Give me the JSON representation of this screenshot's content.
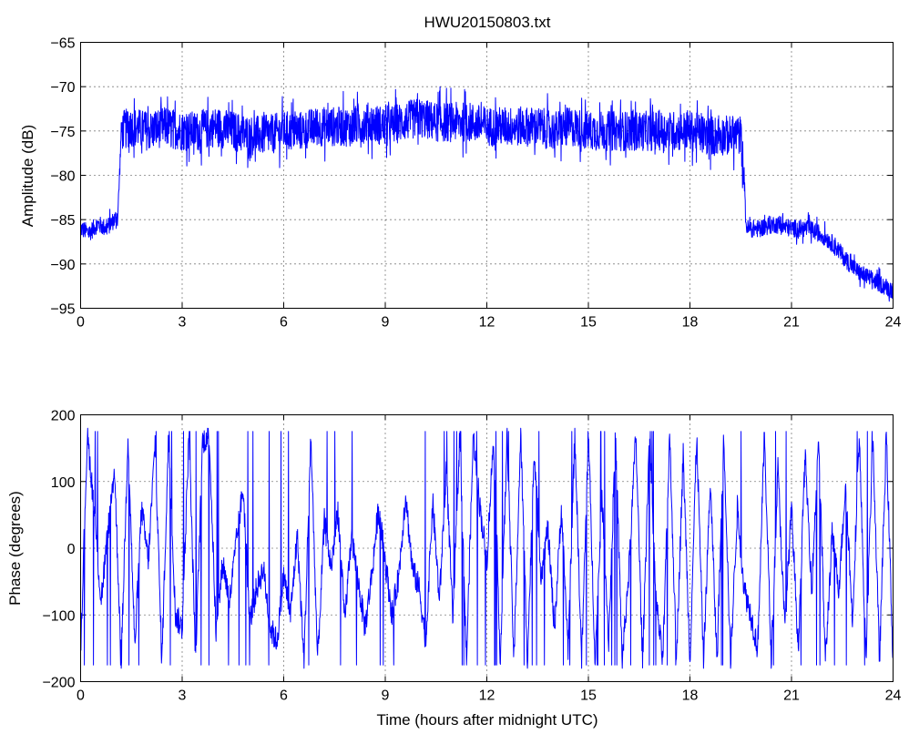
{
  "chart_data": [
    {
      "type": "line",
      "title": "HWU20150803.txt",
      "xlabel": "",
      "ylabel": "Amplitude (dB)",
      "xlim": [
        0,
        24
      ],
      "ylim": [
        -95,
        -65
      ],
      "xticks": [
        0,
        3,
        6,
        9,
        12,
        15,
        18,
        21,
        24
      ],
      "xtick_labels": [
        "0",
        "3",
        "6",
        "9",
        "12",
        "15",
        "18",
        "21",
        "24"
      ],
      "yticks": [
        -95,
        -90,
        -85,
        -80,
        -75,
        -70,
        -65
      ],
      "ytick_labels": [
        "−95",
        "−90",
        "−85",
        "−80",
        "−75",
        "−70",
        "−65"
      ],
      "grid": true,
      "line_color": "#0000ff",
      "series": [
        {
          "x": [
            0,
            0.25,
            0.5,
            0.75,
            1.0,
            1.1,
            1.15,
            1.2,
            1.5,
            2,
            2.5,
            3,
            3.5,
            4,
            4.5,
            5,
            5.5,
            6,
            6.5,
            7,
            7.5,
            8,
            8.5,
            9,
            9.5,
            10,
            10.5,
            11,
            11.5,
            12,
            12.5,
            13,
            13.5,
            14,
            14.5,
            15,
            15.5,
            16,
            16.5,
            17,
            17.5,
            18,
            18.5,
            19,
            19.5,
            19.6,
            19.65,
            19.7,
            20,
            20.5,
            21,
            21.5,
            21.8,
            22,
            22.3,
            22.6,
            23,
            23.5,
            24
          ],
          "y": [
            -86,
            -86.5,
            -85.5,
            -86,
            -85,
            -84.5,
            -80,
            -75,
            -74.5,
            -75,
            -74.5,
            -75,
            -75,
            -74.5,
            -75,
            -75.5,
            -75.5,
            -75,
            -75,
            -74.5,
            -74.5,
            -74.5,
            -74,
            -74.5,
            -74,
            -73.5,
            -74,
            -74,
            -74,
            -74.5,
            -74.5,
            -74.5,
            -74.5,
            -75,
            -74.5,
            -75,
            -75,
            -75,
            -75,
            -75,
            -75,
            -75,
            -75.5,
            -75.5,
            -75.5,
            -80,
            -85.5,
            -86,
            -86,
            -85.5,
            -86,
            -86,
            -86.5,
            -87,
            -88,
            -89.5,
            -91,
            -92,
            -93
          ]
        }
      ]
    },
    {
      "type": "line",
      "title": "",
      "xlabel": "Time (hours after midnight UTC)",
      "ylabel": "Phase (degrees)",
      "xlim": [
        0,
        24
      ],
      "ylim": [
        -200,
        200
      ],
      "xticks": [
        0,
        3,
        6,
        9,
        12,
        15,
        18,
        21,
        24
      ],
      "xtick_labels": [
        "0",
        "3",
        "6",
        "9",
        "12",
        "15",
        "18",
        "21",
        "24"
      ],
      "yticks": [
        -200,
        -100,
        0,
        100,
        200
      ],
      "ytick_labels": [
        "−200",
        "−100",
        "0",
        "100",
        "200"
      ],
      "grid": true,
      "line_color": "#0000ff",
      "series": [
        {
          "x": [
            0,
            0.2,
            0.4,
            0.6,
            0.8,
            1.0,
            1.2,
            1.4,
            1.6,
            1.8,
            2.0,
            2.2,
            2.4,
            2.6,
            2.8,
            3.0,
            3.2,
            3.4,
            3.6,
            3.8,
            4.0,
            4.2,
            4.4,
            4.6,
            4.8,
            5.0,
            5.2,
            5.4,
            5.6,
            5.8,
            6.0,
            6.2,
            6.4,
            6.6,
            6.8,
            7.0,
            7.2,
            7.4,
            7.6,
            7.8,
            8.0,
            8.2,
            8.4,
            8.6,
            8.8,
            9.0,
            9.2,
            9.4,
            9.6,
            9.8,
            10.0,
            10.2,
            10.4,
            10.6,
            10.8,
            11.0,
            11.2,
            11.4,
            11.6,
            11.8,
            12.0,
            12.2,
            12.4,
            12.6,
            12.8,
            13.0,
            13.2,
            13.4,
            13.6,
            13.8,
            14.0,
            14.2,
            14.4,
            14.6,
            14.8,
            15.0,
            15.2,
            15.4,
            15.6,
            15.8,
            16.0,
            16.2,
            16.4,
            16.6,
            16.8,
            17.0,
            17.2,
            17.4,
            17.6,
            17.8,
            18.0,
            18.2,
            18.4,
            18.6,
            18.8,
            19.0,
            19.2,
            19.4,
            19.6,
            19.8,
            20.0,
            20.2,
            20.4,
            20.6,
            20.8,
            21.0,
            21.2,
            21.4,
            21.6,
            21.8,
            22.0,
            22.2,
            22.4,
            22.6,
            22.8,
            23.0,
            23.2,
            23.4,
            23.6,
            23.8,
            24.0
          ],
          "y": [
            -150,
            170,
            60,
            -80,
            20,
            120,
            -170,
            170,
            -150,
            60,
            -20,
            160,
            -170,
            170,
            -100,
            -120,
            170,
            -170,
            160,
            170,
            -130,
            -20,
            -80,
            10,
            90,
            -110,
            -60,
            -30,
            -120,
            -140,
            -40,
            -100,
            20,
            -170,
            170,
            -170,
            40,
            -30,
            60,
            -110,
            20,
            -50,
            -120,
            -40,
            60,
            -20,
            -100,
            -40,
            80,
            -30,
            -60,
            -140,
            70,
            -80,
            120,
            -110,
            170,
            -170,
            170,
            60,
            -20,
            170,
            -170,
            170,
            -170,
            170,
            -170,
            150,
            -40,
            30,
            -120,
            60,
            -150,
            170,
            -170,
            170,
            -170,
            80,
            -140,
            170,
            -170,
            -30,
            170,
            -170,
            170,
            -80,
            -170,
            170,
            -170,
            140,
            -170,
            170,
            -170,
            100,
            -170,
            170,
            -170,
            60,
            -60,
            -100,
            -150,
            170,
            -170,
            120,
            -120,
            60,
            -150,
            140,
            -60,
            170,
            -170,
            20,
            -60,
            100,
            -110,
            170,
            -170,
            170,
            -170,
            170,
            -170
          ]
        }
      ]
    }
  ]
}
